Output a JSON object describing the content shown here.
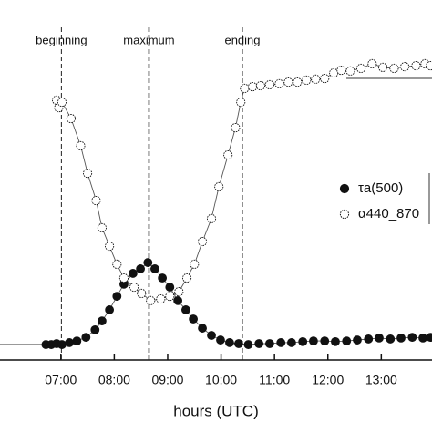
{
  "chart_data": {
    "type": "scatter-line",
    "x_label": "hours (UTC)",
    "xlim": [
      5.86,
      13.95
    ],
    "ylim": [
      0,
      100
    ],
    "xticks": [
      {
        "value": 7,
        "label": "07:00"
      },
      {
        "value": 8,
        "label": "08:00"
      },
      {
        "value": 9,
        "label": "09:00"
      },
      {
        "value": 10,
        "label": "10:00"
      },
      {
        "value": 11,
        "label": "11:00"
      },
      {
        "value": 12,
        "label": "12:00"
      },
      {
        "value": 13,
        "label": "13:00"
      }
    ],
    "events": [
      {
        "label": "beginning",
        "x": 7.01
      },
      {
        "label": "maximum",
        "x": 8.65
      },
      {
        "label": "ending",
        "x": 10.4
      }
    ],
    "series": [
      {
        "name": "τa(500)",
        "color": "#111111",
        "marker": "filled",
        "x": [
          6.72,
          6.82,
          6.92,
          7.02,
          7.16,
          7.3,
          7.47,
          7.64,
          7.77,
          7.91,
          8.05,
          8.18,
          8.35,
          8.49,
          8.63,
          8.76,
          8.9,
          9.04,
          9.19,
          9.34,
          9.48,
          9.65,
          9.82,
          9.99,
          10.16,
          10.33,
          10.51,
          10.71,
          10.91,
          11.12,
          11.32,
          11.53,
          11.73,
          11.94,
          12.14,
          12.35,
          12.55,
          12.76,
          12.96,
          13.17,
          13.37,
          13.58,
          13.78,
          13.92
        ],
        "values": [
          4.7,
          4.7,
          5.0,
          4.7,
          5.3,
          5.8,
          6.9,
          9.2,
          11.9,
          15.3,
          19.4,
          23.1,
          26.4,
          27.8,
          29.7,
          27.8,
          25.0,
          22.2,
          18.1,
          15.3,
          12.5,
          9.7,
          7.5,
          6.1,
          5.3,
          5.0,
          4.7,
          5.0,
          5.0,
          5.3,
          5.3,
          5.6,
          5.8,
          5.8,
          5.6,
          5.8,
          6.1,
          6.4,
          6.7,
          6.4,
          6.7,
          6.9,
          6.7,
          6.9
        ]
      },
      {
        "name": "α440_870",
        "color": "#111111",
        "marker": "open",
        "x": [
          6.92,
          6.96,
          7.02,
          7.19,
          7.37,
          7.5,
          7.66,
          7.77,
          7.91,
          8.05,
          8.18,
          8.37,
          8.51,
          8.68,
          8.87,
          9.04,
          9.21,
          9.36,
          9.5,
          9.65,
          9.82,
          9.96,
          10.13,
          10.27,
          10.37,
          10.44,
          10.59,
          10.74,
          10.91,
          11.09,
          11.26,
          11.43,
          11.6,
          11.77,
          11.94,
          12.11,
          12.25,
          12.42,
          12.62,
          12.83,
          13.03,
          13.24,
          13.44,
          13.65,
          13.82,
          13.92
        ],
        "values": [
          79.2,
          76.9,
          78.6,
          73.6,
          65.3,
          56.9,
          48.6,
          40.3,
          34.7,
          29.2,
          25.0,
          22.2,
          20.3,
          18.1,
          18.6,
          19.4,
          20.8,
          25.0,
          29.2,
          36.1,
          43.1,
          52.8,
          62.5,
          70.8,
          78.6,
          82.8,
          83.3,
          83.6,
          83.9,
          84.2,
          84.7,
          84.7,
          85.3,
          85.6,
          85.8,
          87.5,
          88.3,
          88.1,
          88.9,
          90.3,
          89.2,
          88.9,
          89.4,
          89.7,
          90.3,
          89.7
        ]
      }
    ]
  }
}
